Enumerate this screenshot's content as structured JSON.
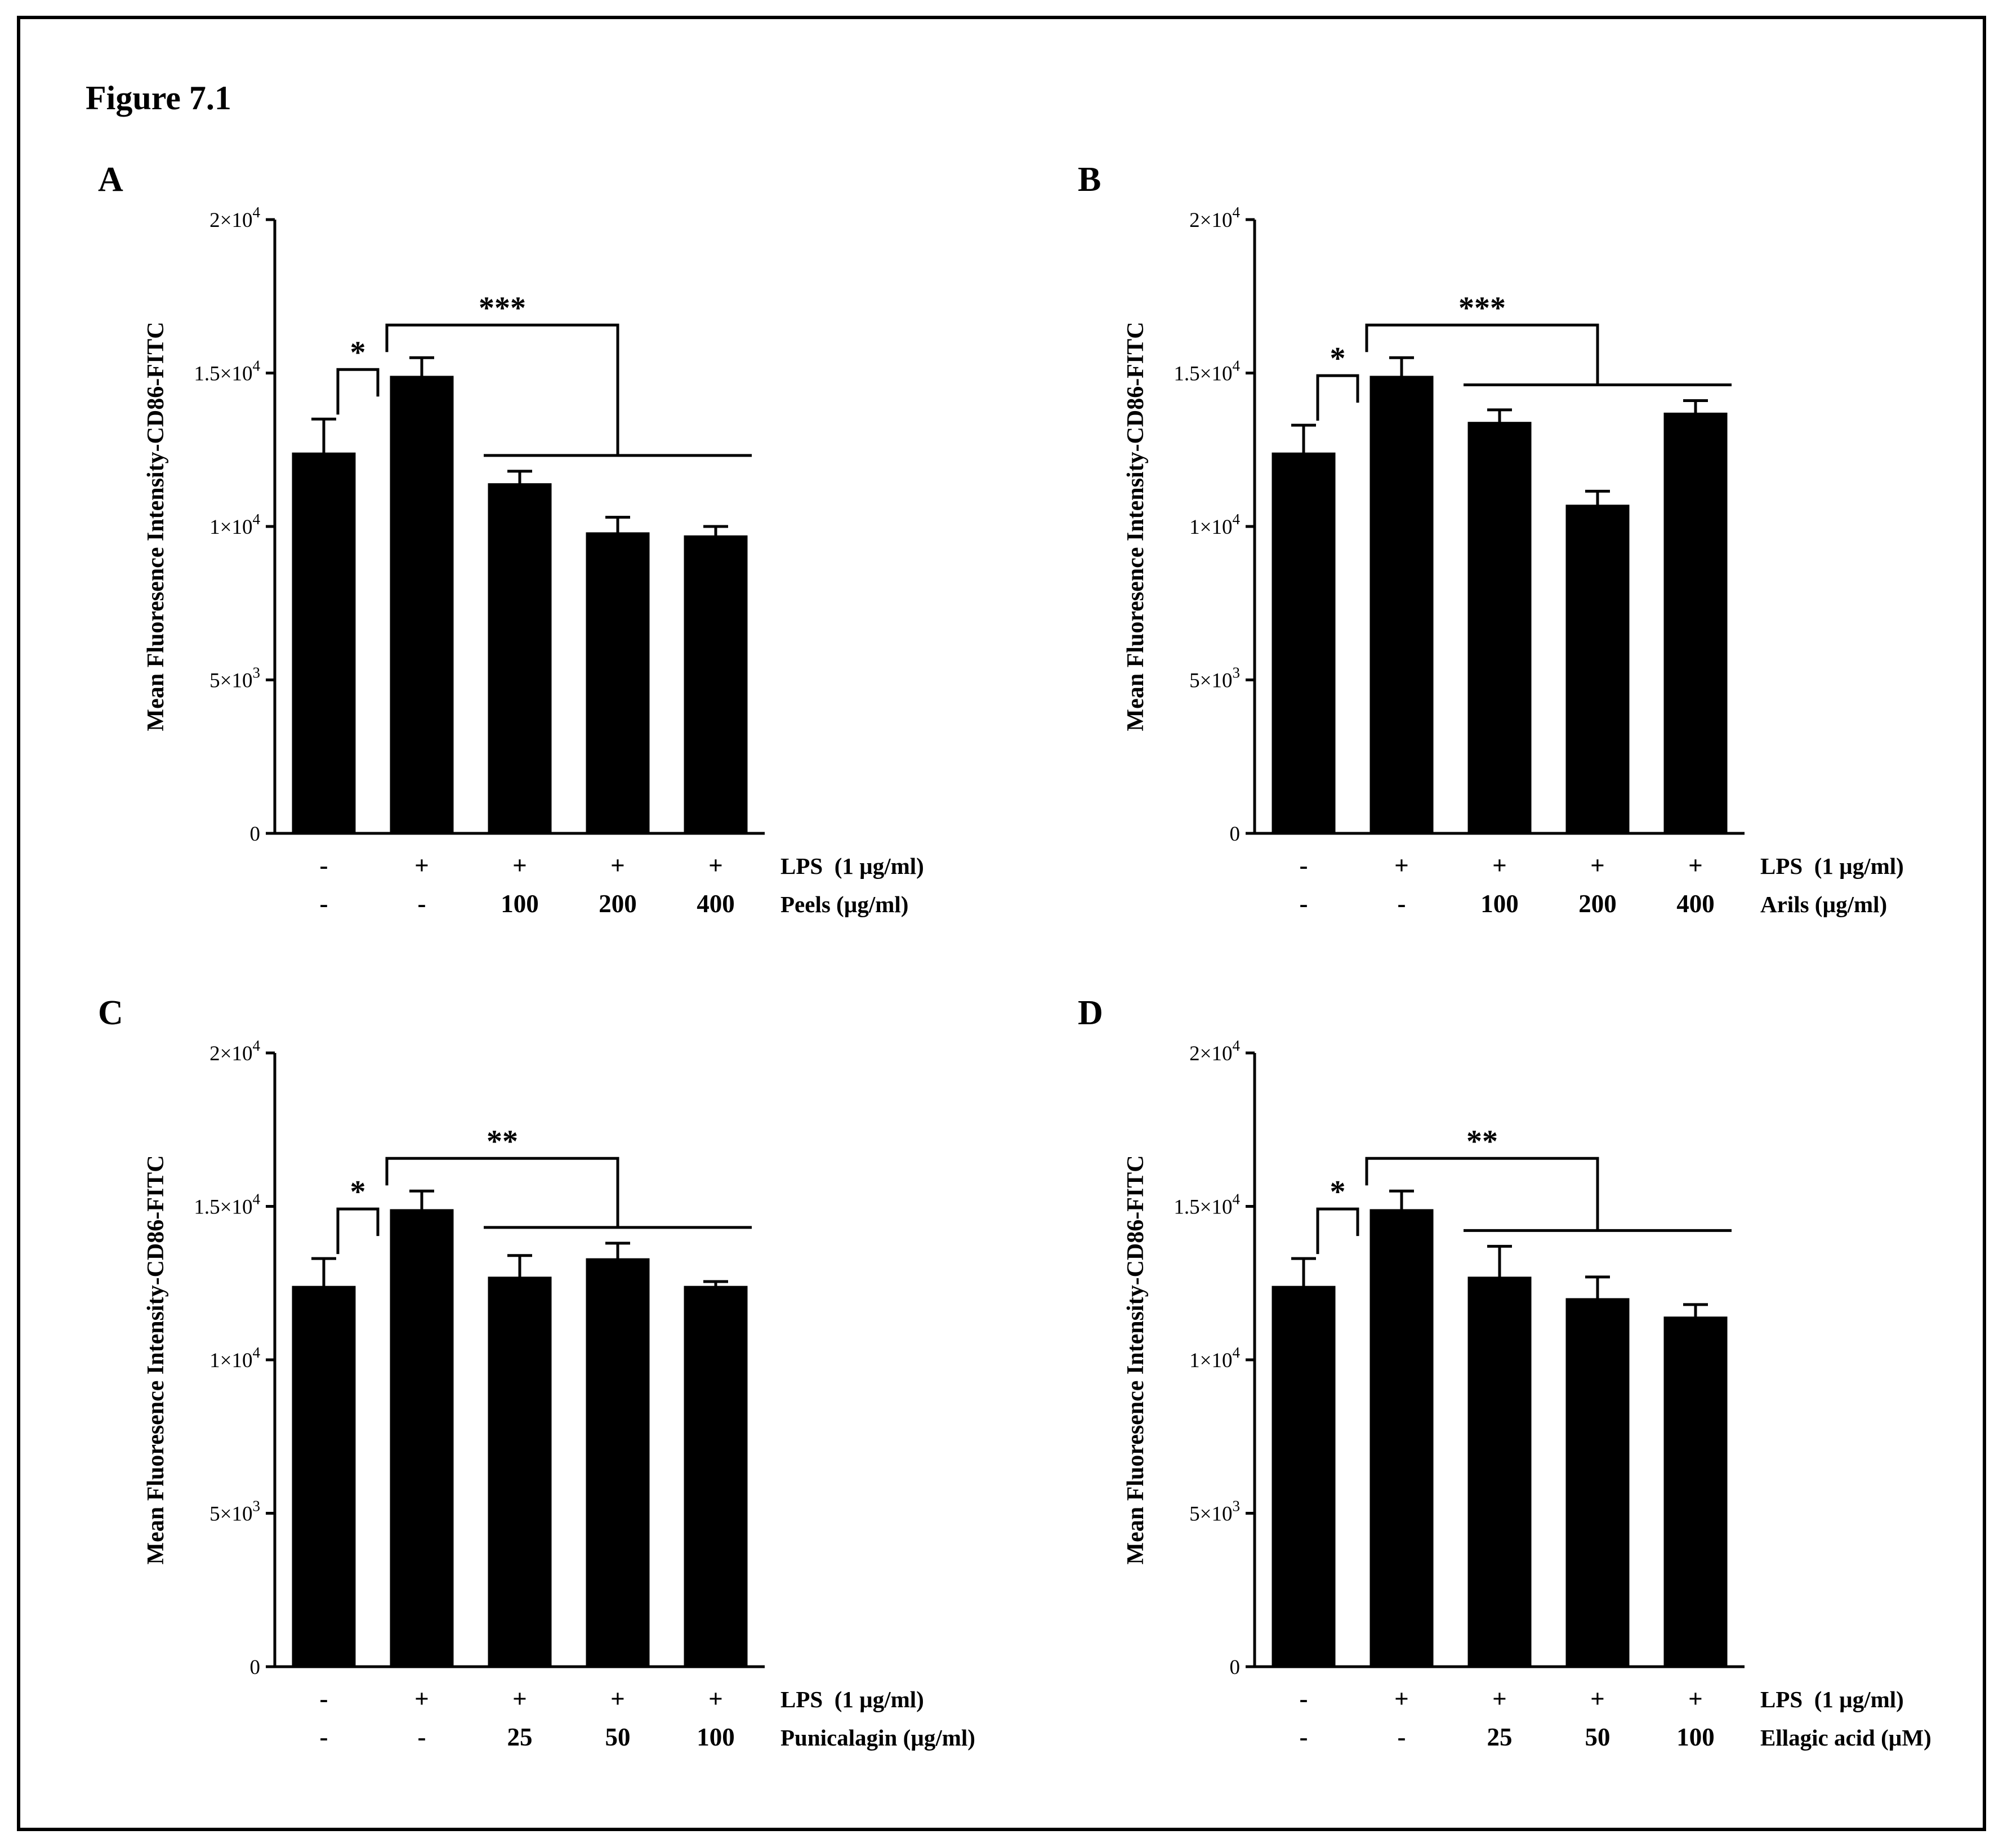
{
  "figure": {
    "title": "Figure 7.1"
  },
  "panels": [
    {
      "label": "A"
    },
    {
      "label": "B"
    },
    {
      "label": "C"
    },
    {
      "label": "D"
    }
  ],
  "chart_data": [
    {
      "type": "bar",
      "panel": "A",
      "title": "",
      "ylabel": "Mean Fluoresence Intensity-CD86-FITC",
      "ylim": [
        0,
        20000
      ],
      "yticks": [
        0,
        5000,
        10000,
        15000,
        20000
      ],
      "ytick_labels": [
        "0",
        "5×10^3",
        "1×10^4",
        "1.5×10^4",
        "2×10^4"
      ],
      "values": [
        12400,
        14900,
        11400,
        9800,
        9700
      ],
      "errors": [
        1100,
        600,
        400,
        500,
        300
      ],
      "bar_color": "#000000",
      "grid": "off",
      "x_rows": [
        {
          "label": "LPS  (1 µg/ml)",
          "cells": [
            "-",
            "+",
            "+",
            "+",
            "+"
          ]
        },
        {
          "label": "Peels (µg/ml)",
          "cells": [
            "-",
            "-",
            "100",
            "200",
            "400"
          ]
        }
      ],
      "significance": [
        {
          "symbol": "*",
          "type": "pair",
          "a": 0,
          "b": 1
        },
        {
          "symbol": "***",
          "type": "group",
          "from": 1,
          "group": [
            2,
            4
          ]
        }
      ]
    },
    {
      "type": "bar",
      "panel": "B",
      "title": "",
      "ylabel": "Mean Fluoresence Intensity-CD86-FITC",
      "ylim": [
        0,
        20000
      ],
      "yticks": [
        0,
        5000,
        10000,
        15000,
        20000
      ],
      "ytick_labels": [
        "0",
        "5×10^3",
        "1×10^4",
        "1.5×10^4",
        "2×10^4"
      ],
      "values": [
        12400,
        14900,
        13400,
        10700,
        13700
      ],
      "errors": [
        900,
        600,
        400,
        450,
        400
      ],
      "bar_color": "#000000",
      "grid": "off",
      "x_rows": [
        {
          "label": "LPS  (1 µg/ml)",
          "cells": [
            "-",
            "+",
            "+",
            "+",
            "+"
          ]
        },
        {
          "label": "Arils (µg/ml)",
          "cells": [
            "-",
            "-",
            "100",
            "200",
            "400"
          ]
        }
      ],
      "significance": [
        {
          "symbol": "*",
          "type": "pair",
          "a": 0,
          "b": 1
        },
        {
          "symbol": "***",
          "type": "group",
          "from": 1,
          "group": [
            2,
            4
          ]
        }
      ]
    },
    {
      "type": "bar",
      "panel": "C",
      "title": "",
      "ylabel": "Mean Fluoresence Intensity-CD86-FITC",
      "ylim": [
        0,
        20000
      ],
      "yticks": [
        0,
        5000,
        10000,
        15000,
        20000
      ],
      "ytick_labels": [
        "0",
        "5×10^3",
        "1×10^4",
        "1.5×10^4",
        "2×10^4"
      ],
      "values": [
        12400,
        14900,
        12700,
        13300,
        12400
      ],
      "errors": [
        900,
        600,
        700,
        500,
        150
      ],
      "bar_color": "#000000",
      "grid": "off",
      "x_rows": [
        {
          "label": "LPS  (1 µg/ml)",
          "cells": [
            "-",
            "+",
            "+",
            "+",
            "+"
          ]
        },
        {
          "label": "Punicalagin (µg/ml)",
          "cells": [
            "-",
            "-",
            "25",
            "50",
            "100"
          ]
        }
      ],
      "significance": [
        {
          "symbol": "*",
          "type": "pair",
          "a": 0,
          "b": 1
        },
        {
          "symbol": "**",
          "type": "group",
          "from": 1,
          "group": [
            2,
            4
          ]
        }
      ]
    },
    {
      "type": "bar",
      "panel": "D",
      "title": "",
      "ylabel": "Mean Fluoresence Intensity-CD86-FITC",
      "ylim": [
        0,
        20000
      ],
      "yticks": [
        0,
        5000,
        10000,
        15000,
        20000
      ],
      "ytick_labels": [
        "0",
        "5×10^3",
        "1×10^4",
        "1.5×10^4",
        "2×10^4"
      ],
      "values": [
        12400,
        14900,
        12700,
        12000,
        11400
      ],
      "errors": [
        900,
        600,
        1000,
        700,
        400
      ],
      "bar_color": "#000000",
      "grid": "off",
      "x_rows": [
        {
          "label": "LPS  (1 µg/ml)",
          "cells": [
            "-",
            "+",
            "+",
            "+",
            "+"
          ]
        },
        {
          "label": "Ellagic acid (µM)",
          "cells": [
            "-",
            "-",
            "25",
            "50",
            "100"
          ]
        }
      ],
      "significance": [
        {
          "symbol": "*",
          "type": "pair",
          "a": 0,
          "b": 1
        },
        {
          "symbol": "**",
          "type": "group",
          "from": 1,
          "group": [
            2,
            4
          ]
        }
      ]
    }
  ]
}
